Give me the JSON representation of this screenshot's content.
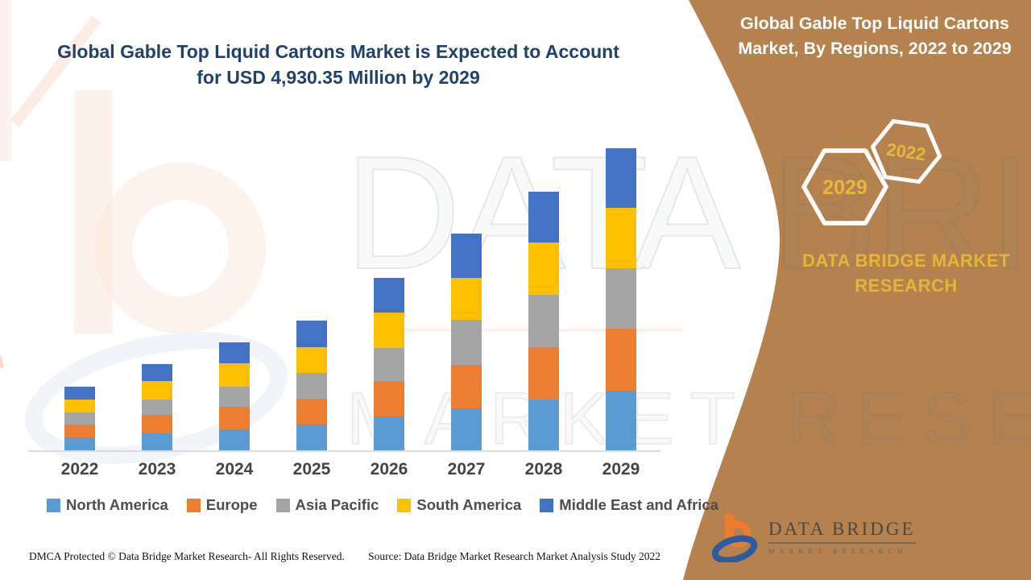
{
  "header": {
    "title_line1": "Global Gable Top Liquid Cartons Market is Expected to Account",
    "title_line2": "for USD 4,930.35 Million by 2029"
  },
  "side_panel": {
    "panel_color": "#b5824f",
    "accent_gold": "#e7b43a",
    "title_line1": "Global Gable Top Liquid Cartons",
    "title_line2": "Market, By Regions, 2022 to 2029",
    "hexagon_badge_front": "2029",
    "hexagon_badge_back": "2022",
    "brand_line1": "DATA BRIDGE MARKET",
    "brand_line2": "RESEARCH",
    "logo_name": "DATA BRIDGE",
    "logo_subtext": "MARKET RESEARCH"
  },
  "watermark": {
    "line1": "DATA BRIDGE",
    "line2": "MARKET RESEARCH"
  },
  "chart_data": {
    "type": "bar",
    "stacked": true,
    "unit": "USD Million",
    "categories": [
      "2022",
      "2023",
      "2024",
      "2025",
      "2026",
      "2027",
      "2028",
      "2029"
    ],
    "series": [
      {
        "name": "North America",
        "color": "#5B9BD5",
        "values": [
          210,
          276,
          342,
          421,
          552,
          684,
          828,
          973
        ]
      },
      {
        "name": "Europe",
        "color": "#ED7D31",
        "values": [
          210,
          302,
          368,
          421,
          579,
          710,
          855,
          1012
        ]
      },
      {
        "name": "Asia Pacific",
        "color": "#A5A5A5",
        "values": [
          197,
          250,
          329,
          421,
          539,
          736,
          855,
          986
        ]
      },
      {
        "name": "South America",
        "color": "#FFC000",
        "values": [
          210,
          302,
          381,
          421,
          579,
          684,
          855,
          986
        ]
      },
      {
        "name": "Middle East and Africa",
        "color": "#4472C4",
        "values": [
          212,
          276,
          342,
          434,
          565,
          723,
          828,
          973.35
        ]
      }
    ],
    "totals": [
      1039,
      1406,
      1762,
      2118,
      2814,
      3537,
      4221,
      4930.35
    ],
    "ymax_anchor": 4930.35,
    "legend_position": "bottom",
    "grid": false
  },
  "footer": {
    "left": "DMCA Protected © Data Bridge Market Research- All Rights Reserved.",
    "right": "Source: Data Bridge Market Research Market Analysis Study 2022"
  }
}
